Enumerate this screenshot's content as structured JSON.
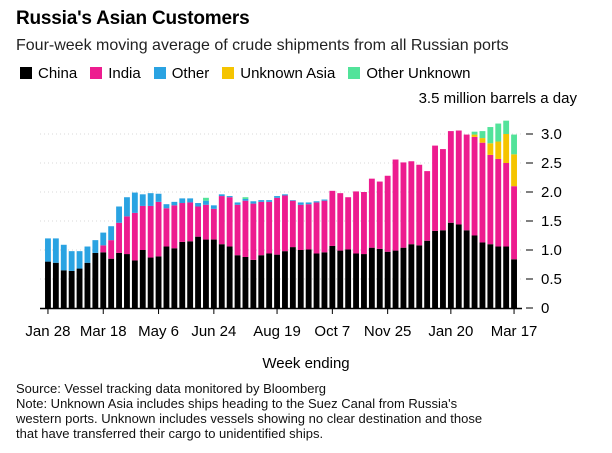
{
  "chart_data": {
    "type": "bar",
    "stacked": true,
    "title": "Russia's Asian Customers",
    "subtitle": "Four-week moving average of crude shipments from all Russian ports",
    "ylabel": "3.5 million barrels a day",
    "xlabel": "Week ending",
    "ylim": [
      0,
      3.5
    ],
    "yticks": [
      {
        "value": 0,
        "label": "0"
      },
      {
        "value": 0.5,
        "label": "0.5"
      },
      {
        "value": 1.0,
        "label": "1.0"
      },
      {
        "value": 1.5,
        "label": "1.5"
      },
      {
        "value": 2.0,
        "label": "2.0"
      },
      {
        "value": 2.5,
        "label": "2.5"
      },
      {
        "value": 3.0,
        "label": "3.0"
      }
    ],
    "xticks": [
      {
        "index": 0,
        "label": "Jan 28"
      },
      {
        "index": 7,
        "label": "Mar 18"
      },
      {
        "index": 14,
        "label": "May 6"
      },
      {
        "index": 21,
        "label": "Jun 24"
      },
      {
        "index": 29,
        "label": "Aug 19"
      },
      {
        "index": 36,
        "label": "Oct 7"
      },
      {
        "index": 43,
        "label": "Nov 25"
      },
      {
        "index": 51,
        "label": "Jan 20"
      },
      {
        "index": 59,
        "label": "Mar 17"
      }
    ],
    "series": [
      {
        "name": "China",
        "color": "#000000",
        "values": [
          0.8,
          0.78,
          0.65,
          0.64,
          0.68,
          0.78,
          0.95,
          0.96,
          0.85,
          0.95,
          0.93,
          0.82,
          1.0,
          0.87,
          0.89,
          1.06,
          1.03,
          1.14,
          1.15,
          1.23,
          1.18,
          1.18,
          1.1,
          1.06,
          0.91,
          0.88,
          0.83,
          0.91,
          0.94,
          0.92,
          0.98,
          1.05,
          1.0,
          1.01,
          0.94,
          0.96,
          1.07,
          0.99,
          1.01,
          0.94,
          0.93,
          1.04,
          1.02,
          0.97,
          0.99,
          1.04,
          1.1,
          1.08,
          1.16,
          1.33,
          1.34,
          1.47,
          1.44,
          1.34,
          1.25,
          1.13,
          1.1,
          1.06,
          1.06,
          0.84
        ]
      },
      {
        "name": "India",
        "color": "#ed1c8f",
        "values": [
          0.0,
          0.0,
          0.0,
          0.0,
          0.0,
          0.0,
          0.0,
          0.12,
          0.32,
          0.52,
          0.65,
          0.82,
          0.76,
          0.89,
          0.94,
          0.66,
          0.74,
          0.67,
          0.67,
          0.52,
          0.6,
          0.53,
          0.83,
          0.85,
          0.87,
          0.97,
          0.97,
          0.92,
          0.89,
          0.98,
          0.96,
          0.8,
          0.78,
          0.78,
          0.88,
          0.89,
          0.95,
          0.99,
          0.9,
          1.07,
          1.07,
          1.19,
          1.16,
          1.31,
          1.57,
          1.47,
          1.43,
          1.39,
          1.2,
          1.47,
          1.4,
          1.58,
          1.62,
          1.65,
          1.7,
          1.72,
          1.54,
          1.51,
          1.44,
          1.26
        ]
      },
      {
        "name": "Other",
        "color": "#2aa3e2",
        "values": [
          0.4,
          0.42,
          0.44,
          0.34,
          0.3,
          0.28,
          0.22,
          0.22,
          0.24,
          0.28,
          0.33,
          0.35,
          0.2,
          0.22,
          0.14,
          0.07,
          0.06,
          0.08,
          0.07,
          0.06,
          0.07,
          0.06,
          0.03,
          0.02,
          0.04,
          0.03,
          0.04,
          0.03,
          0.03,
          0.03,
          0.02,
          0.01,
          0.04,
          0.03,
          0.02,
          0.02,
          0.0,
          0.0,
          0.0,
          0.0,
          0.0,
          0.0,
          0.0,
          0.0,
          0.0,
          0.0,
          0.0,
          0.0,
          0.0,
          0.0,
          0.0,
          0.0,
          0.0,
          0.0,
          0.0,
          0.0,
          0.0,
          0.0,
          0.0,
          0.0
        ]
      },
      {
        "name": "Unknown Asia",
        "color": "#f5c400",
        "values": [
          0,
          0,
          0,
          0,
          0,
          0,
          0,
          0,
          0,
          0,
          0,
          0,
          0,
          0,
          0,
          0,
          0,
          0,
          0,
          0,
          0,
          0,
          0,
          0,
          0,
          0,
          0,
          0,
          0,
          0,
          0,
          0,
          0,
          0,
          0,
          0,
          0,
          0,
          0,
          0,
          0,
          0,
          0,
          0,
          0,
          0,
          0,
          0,
          0,
          0,
          0,
          0,
          0,
          0,
          0.04,
          0.08,
          0.2,
          0.3,
          0.5,
          0.55
        ]
      },
      {
        "name": "Other Unknown",
        "color": "#52e39a",
        "values": [
          0,
          0,
          0,
          0,
          0,
          0,
          0,
          0,
          0,
          0,
          0,
          0,
          0,
          0,
          0,
          0,
          0,
          0,
          0,
          0,
          0.05,
          0,
          0,
          0,
          0,
          0.03,
          0,
          0,
          0,
          0,
          0,
          0,
          0,
          0,
          0,
          0,
          0,
          0,
          0,
          0,
          0,
          0,
          0,
          0,
          0,
          0,
          0,
          0,
          0,
          0,
          0,
          0,
          0,
          0,
          0.05,
          0.12,
          0.28,
          0.31,
          0.23,
          0.34
        ]
      }
    ]
  },
  "footer": {
    "source": "Source: Vessel tracking data monitored by Bloomberg",
    "note_1": "Note: Unknown Asia includes ships heading to the Suez Canal from Russia's",
    "note_2": "western ports. Unknown includes vessels showing no clear destination and those",
    "note_3": "that have transferred their cargo to unidentified ships."
  }
}
